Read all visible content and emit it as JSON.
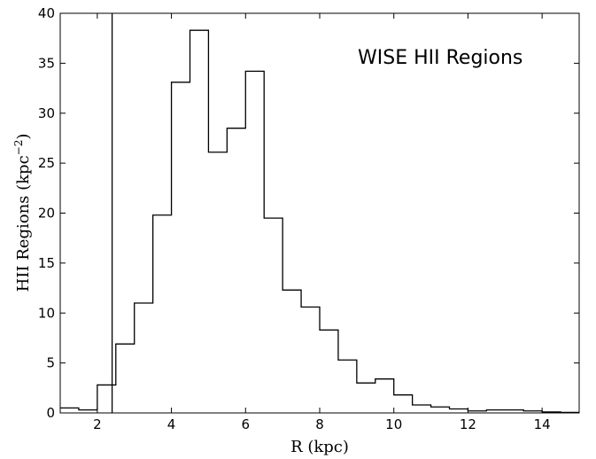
{
  "chart_data": {
    "type": "bar",
    "histogram": true,
    "annotation": "WISE HII Regions",
    "xlabel": "R (kpc)",
    "ylabel": {
      "base": "HII Regions (kpc",
      "sup": "−2",
      "close": ")"
    },
    "xlim": [
      1,
      15
    ],
    "ylim": [
      0,
      40
    ],
    "xticks": [
      2,
      4,
      6,
      8,
      10,
      12,
      14
    ],
    "yticks": [
      0,
      5,
      10,
      15,
      20,
      25,
      30,
      35,
      40
    ],
    "vertical_line_x": 2.4,
    "bin_width": 0.5,
    "bin_left_edges": [
      1.0,
      1.5,
      2.0,
      2.5,
      3.0,
      3.5,
      4.0,
      4.5,
      5.0,
      5.5,
      6.0,
      6.5,
      7.0,
      7.5,
      8.0,
      8.5,
      9.0,
      9.5,
      10.0,
      10.5,
      11.0,
      11.5,
      12.0,
      12.5,
      13.0,
      13.5,
      14.0,
      14.5
    ],
    "values": [
      0.5,
      0.3,
      2.8,
      6.9,
      11.0,
      19.8,
      33.1,
      38.3,
      26.1,
      28.5,
      34.2,
      19.5,
      12.3,
      10.6,
      8.3,
      5.3,
      3.0,
      3.4,
      1.8,
      0.8,
      0.6,
      0.4,
      0.2,
      0.3,
      0.3,
      0.2,
      0.1,
      0.05
    ],
    "grid": false
  }
}
